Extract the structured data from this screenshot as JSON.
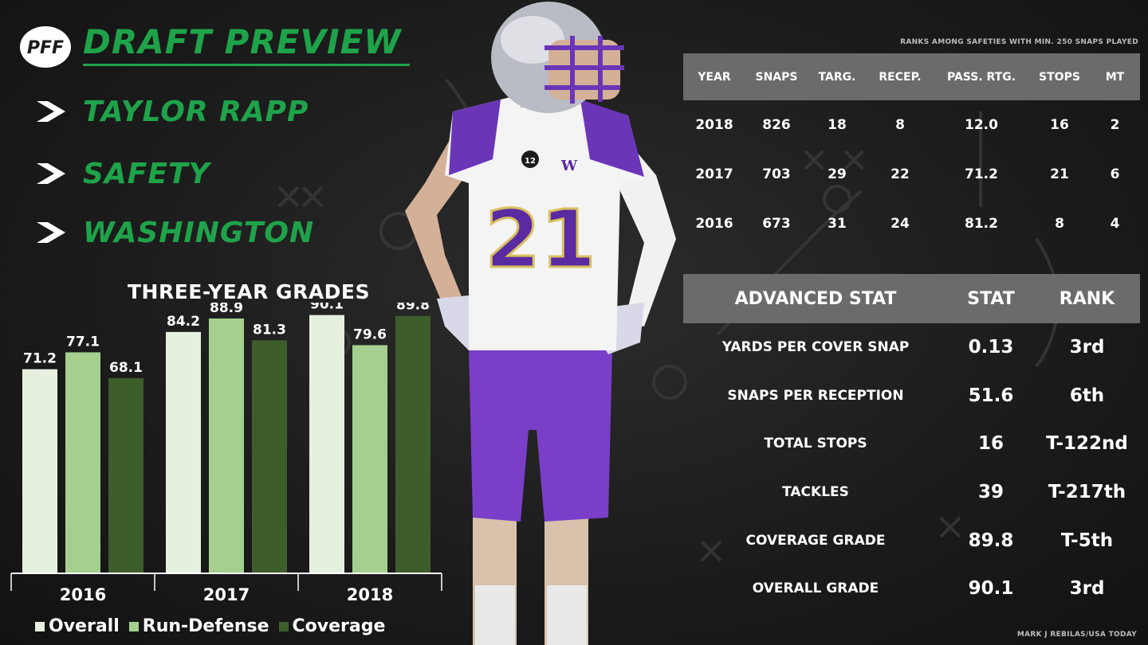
{
  "header": {
    "logo_text": "PFF",
    "title": "DRAFT PREVIEW",
    "player_name": "TAYLOR RAPP",
    "position": "SAFETY",
    "school": "WASHINGTON"
  },
  "colors": {
    "accent_green": "#1fa34a",
    "overall": "#e6f0df",
    "run_defense": "#a5cf8f",
    "coverage": "#3d5e2b",
    "table_header": "#6b6b6b"
  },
  "chart_data": {
    "type": "bar",
    "title": "THREE-YEAR GRADES",
    "categories": [
      "2016",
      "2017",
      "2018"
    ],
    "series": [
      {
        "name": "Overall",
        "values": [
          71.2,
          84.2,
          90.1
        ]
      },
      {
        "name": "Run-Defense",
        "values": [
          77.1,
          88.9,
          79.6
        ]
      },
      {
        "name": "Coverage",
        "values": [
          68.1,
          81.3,
          89.8
        ]
      }
    ],
    "ylim": [
      0,
      100
    ],
    "grid": false,
    "legend": "bottom"
  },
  "stats_table": {
    "note": "RANKS AMONG SAFETIES WITH MIN. 250 SNAPS PLAYED",
    "headers": [
      "YEAR",
      "SNAPS",
      "TARG.",
      "RECEP.",
      "PASS. RTG.",
      "STOPS",
      "MT"
    ],
    "rows": [
      [
        "2018",
        "826",
        "18",
        "8",
        "12.0",
        "16",
        "2"
      ],
      [
        "2017",
        "703",
        "29",
        "22",
        "71.2",
        "21",
        "6"
      ],
      [
        "2016",
        "673",
        "31",
        "24",
        "81.2",
        "8",
        "4"
      ]
    ]
  },
  "advanced_table": {
    "headers": [
      "ADVANCED STAT",
      "STAT",
      "RANK"
    ],
    "rows": [
      [
        "YARDS PER COVER SNAP",
        "0.13",
        "3rd"
      ],
      [
        "SNAPS PER RECEPTION",
        "51.6",
        "6th"
      ],
      [
        "TOTAL STOPS",
        "16",
        "T-122nd"
      ],
      [
        "TACKLES",
        "39",
        "T-217th"
      ],
      [
        "COVERAGE GRADE",
        "89.8",
        "T-5th"
      ],
      [
        "OVERALL GRADE",
        "90.1",
        "3rd"
      ]
    ]
  },
  "player_photo": {
    "jersey_number": "21",
    "jersey_letter": "W",
    "conference": "12"
  },
  "credit": "MARK J REBILAS/USA TODAY"
}
